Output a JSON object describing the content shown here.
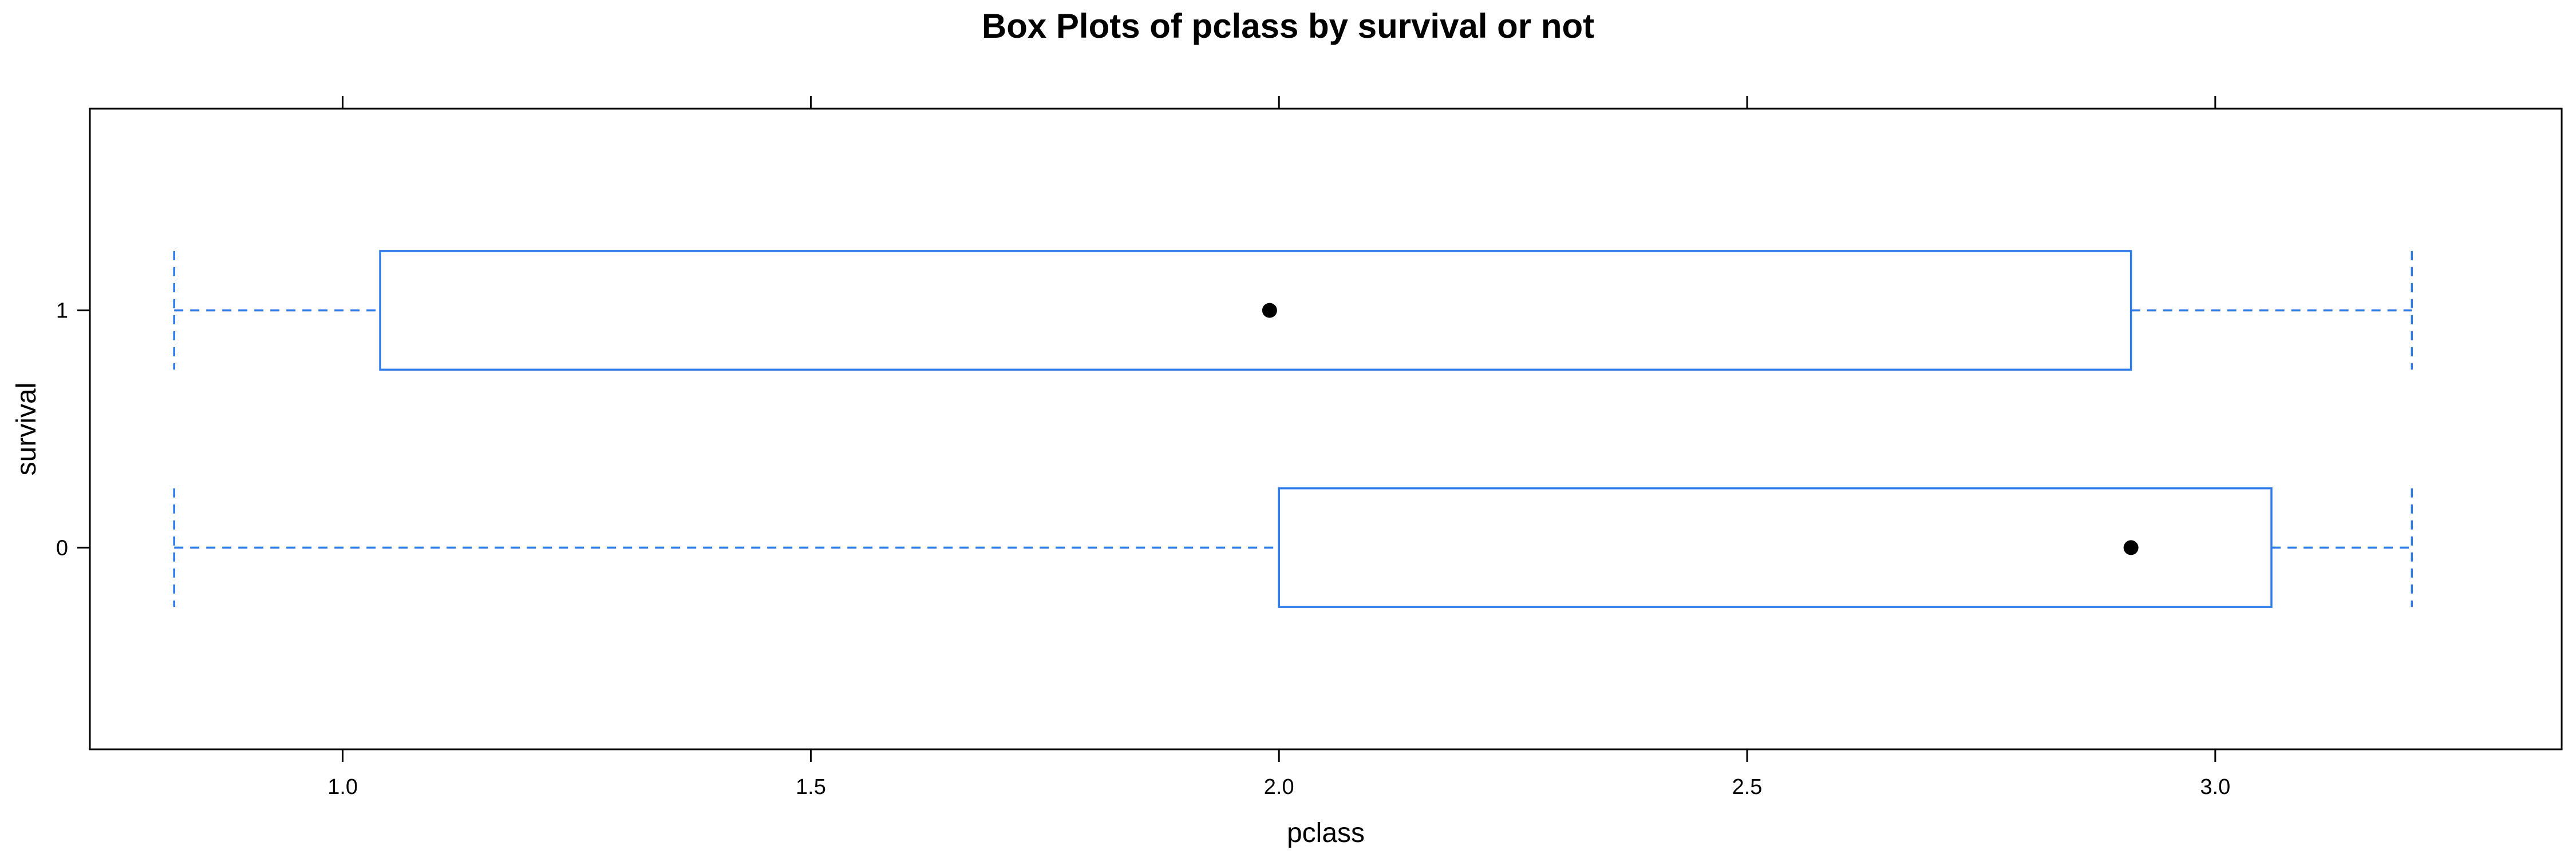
{
  "chart_data": {
    "type": "box",
    "title": "Box Plots of pclass by survival or not",
    "xlabel": "pclass",
    "ylabel": "survival",
    "xlim": [
      0.73,
      3.37
    ],
    "x_ticks": [
      1.0,
      1.5,
      2.0,
      2.5,
      3.0
    ],
    "x_tick_labels": [
      "1.0",
      "1.5",
      "2.0",
      "2.5",
      "3.0"
    ],
    "categories": [
      "0",
      "1"
    ],
    "color": "#2f7bea",
    "median_color": "#000000",
    "boxes": [
      {
        "category": "0",
        "min": 0.82,
        "q1": 2.0,
        "median": 2.91,
        "q3": 3.06,
        "max": 3.21
      },
      {
        "category": "1",
        "min": 0.82,
        "q1": 1.04,
        "median": 1.99,
        "q3": 2.91,
        "max": 3.21
      }
    ],
    "grid": false,
    "legend": "none"
  }
}
